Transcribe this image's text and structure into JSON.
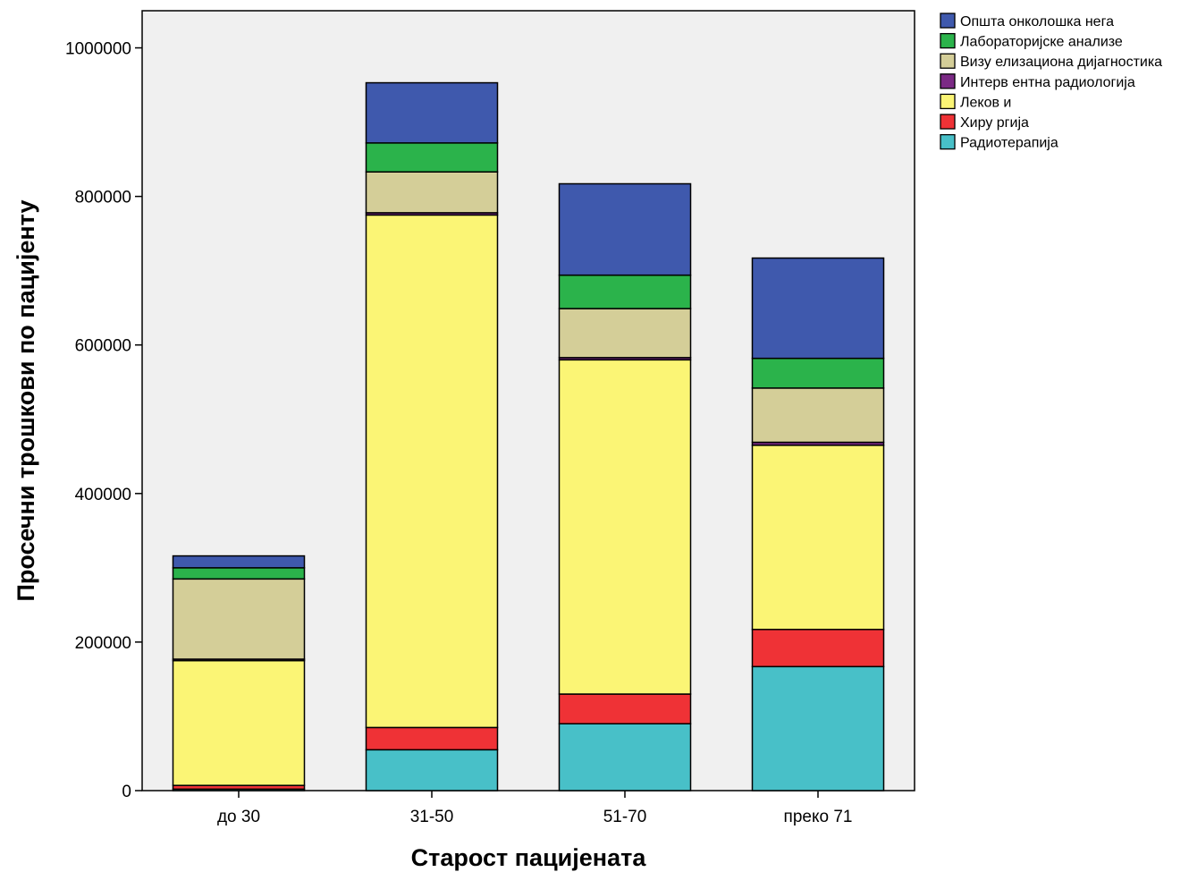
{
  "chart_data": {
    "type": "bar",
    "stacked": true,
    "xlabel": "Старост пацијената",
    "ylabel": "Просечни трошкови по пацијенту",
    "categories": [
      "до 30",
      "31-50",
      "51-70",
      "преко 71"
    ],
    "ylim": [
      0,
      1050000
    ],
    "yticks": [
      0,
      200000,
      400000,
      600000,
      800000,
      1000000
    ],
    "yticklabels": [
      "0",
      "200000",
      "400000",
      "600000",
      "800000",
      "1000000"
    ],
    "grid": false,
    "legend_position": "top-right outside plot",
    "plot_background": "#f0f0f0",
    "series": [
      {
        "name": "Радиотерапија",
        "color": "#48c0c8",
        "values": [
          2000,
          55000,
          90000,
          167000
        ]
      },
      {
        "name": "Хиру ргија",
        "color": "#ef3236",
        "values": [
          5000,
          30000,
          40000,
          50000
        ]
      },
      {
        "name": "Леков и",
        "color": "#fbf575",
        "values": [
          168000,
          690000,
          450000,
          248000
        ]
      },
      {
        "name": "Интерв ентна радиологија",
        "color": "#7b2a85",
        "values": [
          2000,
          3000,
          3000,
          4000
        ]
      },
      {
        "name": "Визу елизациона дијагностика",
        "color": "#d4ce98",
        "values": [
          108000,
          55000,
          66000,
          73000
        ]
      },
      {
        "name": "Лабораторијске анализе",
        "color": "#2bb34b",
        "values": [
          15000,
          39000,
          45000,
          40000
        ]
      },
      {
        "name": "Општа онколошка нега",
        "color": "#3f59ad",
        "values": [
          16000,
          81000,
          123000,
          135000
        ]
      }
    ],
    "legend_order": [
      "Општа онколошка нега",
      "Лабораторијске анализе",
      "Визу елизациона дијагностика",
      "Интерв ентна радиологија",
      "Леков и",
      "Хиру ргија",
      "Радиотерапија"
    ]
  }
}
